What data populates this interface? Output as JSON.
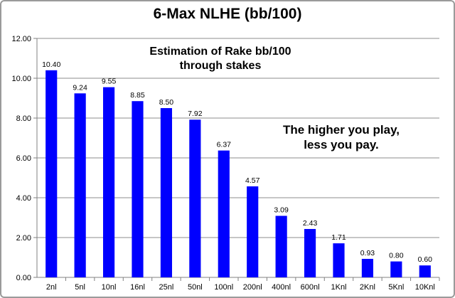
{
  "chart_data": {
    "type": "bar",
    "title": "6-Max NLHE (bb/100)",
    "xlabel": "",
    "ylabel": "",
    "categories": [
      "2nl",
      "5nl",
      "10nl",
      "16nl",
      "25nl",
      "50nl",
      "100nl",
      "200nl",
      "400nl",
      "600nl",
      "1Knl",
      "2Knl",
      "5Knl",
      "10Knl"
    ],
    "series": [
      {
        "values": [
          10.4,
          9.24,
          9.55,
          8.85,
          8.5,
          7.92,
          6.37,
          4.57,
          3.09,
          2.43,
          1.71,
          0.93,
          0.8,
          0.6
        ],
        "data_labels": [
          "10.40",
          "9.24",
          "9.55",
          "8.85",
          "8.50",
          "7.92",
          "6.37",
          "4.57",
          "3.09",
          "2.43",
          "1.71",
          "0.93",
          "0.80",
          "0.60"
        ],
        "color": "#0000ff"
      }
    ],
    "ylim": [
      0,
      12
    ],
    "yticks": [
      "0.00",
      "2.00",
      "4.00",
      "6.00",
      "8.00",
      "10.00",
      "12.00"
    ],
    "grid": true,
    "legend": "none",
    "annotations": [
      "Estimation of Rake bb/100\nthrough stakes",
      "The higher you play,\nless you pay."
    ]
  }
}
